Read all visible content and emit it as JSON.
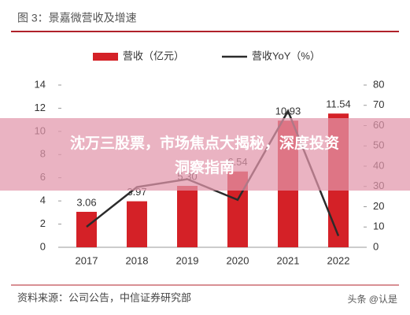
{
  "chart_data": {
    "type": "bar",
    "title": "图 3：景嘉微营收及增速",
    "categories": [
      "2017",
      "2018",
      "2019",
      "2020",
      "2021",
      "2022"
    ],
    "series": [
      {
        "name": "营收（亿元）",
        "color": "#d42127",
        "values": [
          3.06,
          3.97,
          5.3,
          6.54,
          10.93,
          11.54
        ],
        "value_labels": [
          "3.06",
          "3.97",
          "5.30",
          "6.54",
          "10.93",
          "11.54"
        ]
      },
      {
        "name": "营收YoY（%）",
        "type": "line",
        "axis": "y2",
        "color": "#2b2b2b",
        "values": [
          10.1,
          29.7,
          33.6,
          23.4,
          67.2,
          5.6
        ]
      }
    ],
    "ylim": [
      0,
      14
    ],
    "yticks": [
      0,
      2,
      4,
      6,
      8,
      10,
      12,
      14
    ],
    "y2lim": [
      0,
      80
    ],
    "y2ticks": [
      0,
      10,
      20,
      30,
      40,
      50,
      60,
      70,
      80
    ],
    "grid": false,
    "legend": "top"
  },
  "banner": {
    "line1": "沈万三股票，市场焦点大揭秘，深度投资",
    "line2": "洞察指南"
  },
  "source": "资料来源：公司公告，中信证券研究部",
  "watermark": "头条 @认是"
}
